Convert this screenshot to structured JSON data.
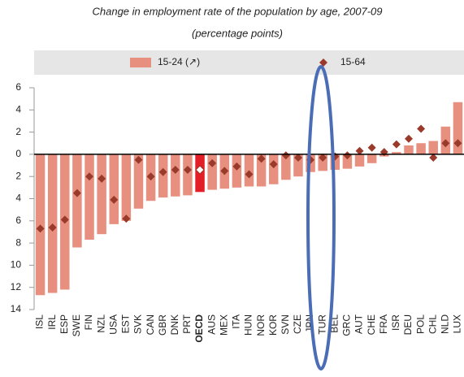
{
  "chart_data": {
    "type": "bar",
    "title": "Change in employment rate of the population by age, 2007-09",
    "subtitle": "(percentage points)",
    "categories": [
      "ISL",
      "IRL",
      "ESP",
      "SWE",
      "FIN",
      "NZL",
      "USA",
      "EST",
      "SVK",
      "CAN",
      "GBR",
      "DNK",
      "PRT",
      "OECD",
      "AUS",
      "MEX",
      "ITA",
      "HUN",
      "NOR",
      "KOR",
      "SVN",
      "CZE",
      "JPN",
      "TUR",
      "BEL",
      "GRC",
      "AUT",
      "CHE",
      "FRA",
      "ISR",
      "DEU",
      "POL",
      "CHL",
      "NLD",
      "LUX"
    ],
    "series": [
      {
        "name": "15-24 (↗)",
        "type": "bar",
        "color": "#e7907f",
        "values": [
          -12.7,
          -12.5,
          -12.2,
          -8.4,
          -7.7,
          -7.2,
          -6.3,
          -6.0,
          -4.9,
          -4.2,
          -3.9,
          -3.8,
          -3.7,
          -3.4,
          -3.2,
          -3.1,
          -3.0,
          -2.9,
          -2.9,
          -2.7,
          -2.3,
          -2.0,
          -1.6,
          -1.5,
          -1.4,
          -1.3,
          -1.1,
          -0.8,
          -0.2,
          0.2,
          0.8,
          1.0,
          1.2,
          2.5,
          4.7
        ]
      },
      {
        "name": "15-64",
        "type": "scatter",
        "color": "#9a3a2b",
        "values": [
          -6.7,
          -6.6,
          -5.9,
          -3.5,
          -2.0,
          -2.2,
          -4.1,
          -5.8,
          -0.5,
          -2.0,
          -1.6,
          -1.4,
          -1.4,
          -1.4,
          -0.8,
          -1.5,
          -1.1,
          -1.8,
          -0.4,
          -0.9,
          -0.1,
          -0.3,
          -0.5,
          -0.3,
          -0.2,
          -0.1,
          0.3,
          0.6,
          0.2,
          0.9,
          1.4,
          2.3,
          -0.3,
          1.0,
          1.0
        ]
      }
    ],
    "highlight_category": "OECD",
    "highlight_color": "#e41e26",
    "highlight_marker_color": "#ffffff",
    "ylim": [
      -14,
      6
    ],
    "yticks": [
      {
        "value": 6,
        "label": "6"
      },
      {
        "value": 4,
        "label": "4"
      },
      {
        "value": 2,
        "label": "2"
      },
      {
        "value": 0,
        "label": "0"
      },
      {
        "value": -2,
        "label": "2"
      },
      {
        "value": -4,
        "label": "4"
      },
      {
        "value": -6,
        "label": "6"
      },
      {
        "value": -8,
        "label": "8"
      },
      {
        "value": -10,
        "label": "10"
      },
      {
        "value": -12,
        "label": "12"
      },
      {
        "value": -14,
        "label": "14"
      }
    ]
  }
}
